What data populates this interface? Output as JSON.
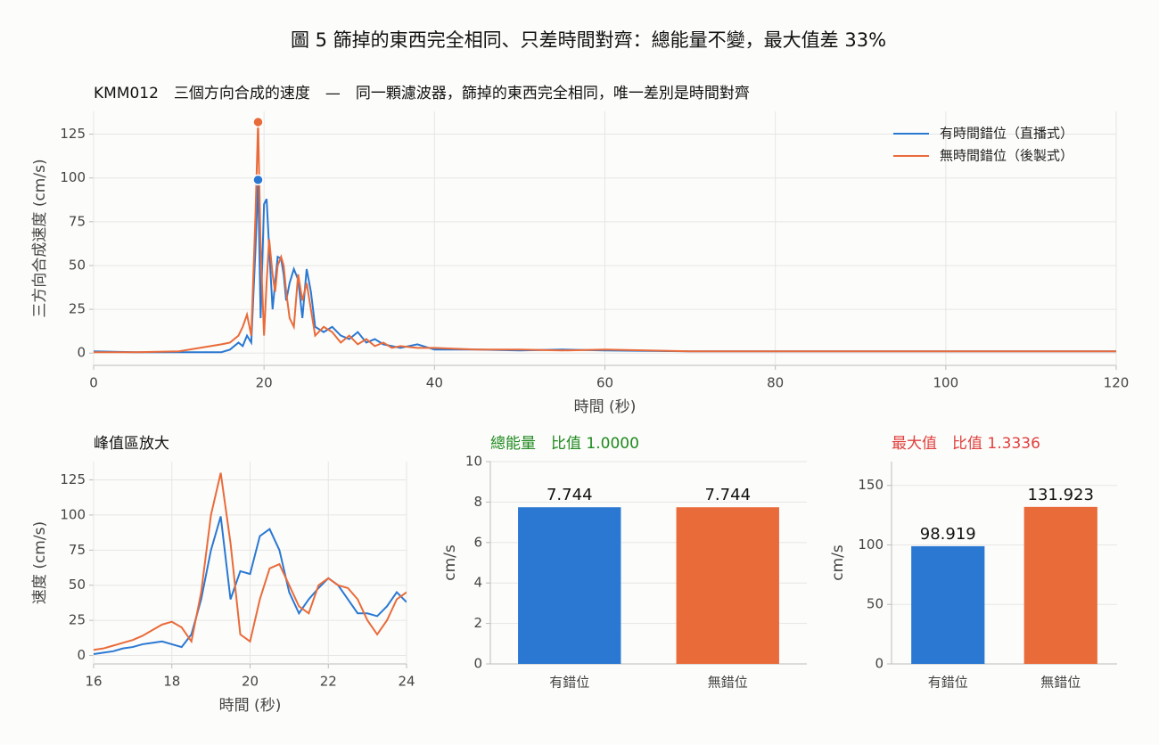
{
  "title": "圖 5  篩掉的東西完全相同、只差時間對齊：總能量不變，最大值差 33%",
  "chart_data": [
    {
      "type": "line",
      "title": "KMM012　三個方向合成的速度　—　同一顆濾波器，篩掉的東西完全相同，唯一差別是時間對齊",
      "xlabel": "時間 (秒)",
      "ylabel": "三方向合成速度 (cm/s)",
      "xlim": [
        0,
        120
      ],
      "xticks": [
        0,
        20,
        40,
        60,
        80,
        100,
        120
      ],
      "ylim": [
        -7,
        138
      ],
      "yticks": [
        0,
        25,
        50,
        75,
        100,
        125
      ],
      "grid": true,
      "legend": "upper right",
      "peak_marker": true,
      "x": [
        0,
        5,
        10,
        15,
        16,
        17,
        17.5,
        18,
        18.5,
        19,
        19.3,
        19.6,
        20,
        20.3,
        20.6,
        21,
        21.3,
        21.6,
        22,
        22.3,
        22.6,
        23,
        23.5,
        24,
        24.5,
        25,
        25.5,
        26,
        27,
        28,
        29,
        30,
        31,
        32,
        33,
        34,
        35,
        36,
        38,
        40,
        45,
        50,
        55,
        60,
        70,
        80,
        90,
        100,
        110,
        120
      ],
      "series": [
        {
          "name": "有時間錯位（直播式）",
          "color": "#2a78d2",
          "values": [
            1,
            0.5,
            0.5,
            0.5,
            2,
            6,
            4,
            10,
            6,
            60,
            98.919,
            20,
            85,
            88,
            60,
            25,
            40,
            55,
            54,
            45,
            30,
            40,
            48,
            42,
            20,
            48,
            35,
            15,
            12,
            15,
            10,
            8,
            12,
            6,
            8,
            5,
            4,
            3,
            5,
            2,
            2,
            1.5,
            2,
            1.5,
            1,
            1,
            1,
            1,
            1,
            1
          ]
        },
        {
          "name": "無時間錯位（後製式）",
          "color": "#e96b3a",
          "values": [
            0.5,
            0.5,
            1,
            5,
            6,
            10,
            15,
            22,
            10,
            80,
            131.923,
            60,
            10,
            40,
            65,
            45,
            35,
            50,
            55,
            50,
            35,
            20,
            15,
            45,
            30,
            40,
            25,
            10,
            15,
            12,
            6,
            10,
            5,
            8,
            4,
            6,
            3,
            4,
            3,
            3,
            2,
            2,
            1.5,
            2,
            1,
            1,
            1,
            1,
            1,
            1
          ]
        }
      ]
    },
    {
      "type": "line",
      "title": "峰值區放大",
      "xlabel": "時間 (秒)",
      "ylabel": "速度 (cm/s)",
      "xlim": [
        16,
        24
      ],
      "xticks": [
        16,
        18,
        20,
        22,
        24
      ],
      "ylim": [
        -6,
        138
      ],
      "yticks": [
        0,
        25,
        50,
        75,
        100,
        125
      ],
      "grid": true,
      "x": [
        16,
        16.25,
        16.5,
        16.75,
        17,
        17.25,
        17.5,
        17.75,
        18,
        18.25,
        18.5,
        18.75,
        19,
        19.25,
        19.5,
        19.75,
        20,
        20.25,
        20.5,
        20.75,
        21,
        21.25,
        21.5,
        21.75,
        22,
        22.25,
        22.5,
        22.75,
        23,
        23.25,
        23.5,
        23.75,
        24
      ],
      "series": [
        {
          "color": "#2a78d2",
          "values": [
            1,
            2,
            3,
            5,
            6,
            8,
            9,
            10,
            8,
            6,
            15,
            40,
            75,
            99,
            40,
            60,
            58,
            85,
            90,
            75,
            45,
            30,
            40,
            48,
            55,
            50,
            40,
            30,
            30,
            28,
            35,
            45,
            38
          ]
        },
        {
          "color": "#e96b3a",
          "values": [
            4,
            5,
            7,
            9,
            11,
            14,
            18,
            22,
            24,
            20,
            10,
            45,
            100,
            130,
            80,
            15,
            10,
            40,
            62,
            65,
            50,
            35,
            30,
            50,
            55,
            50,
            48,
            40,
            25,
            15,
            25,
            40,
            45
          ]
        }
      ]
    },
    {
      "type": "bar",
      "title": "總能量　比值 1.0000",
      "title_color": "#1f8a1f",
      "ylabel": "cm/s",
      "categories": [
        "有錯位",
        "無錯位"
      ],
      "values": [
        7.744,
        7.744
      ],
      "colors": [
        "#2a78d2",
        "#e96b3a"
      ],
      "ylim": [
        0,
        10
      ],
      "yticks": [
        0,
        2,
        4,
        6,
        8,
        10
      ],
      "grid": true
    },
    {
      "type": "bar",
      "title": "最大值　比值 1.3336",
      "title_color": "#e0413f",
      "ylabel": "cm/s",
      "categories": [
        "有錯位",
        "無錯位"
      ],
      "values": [
        98.919,
        131.923
      ],
      "colors": [
        "#2a78d2",
        "#e96b3a"
      ],
      "ylim": [
        0,
        170
      ],
      "yticks": [
        0,
        50,
        100,
        150
      ],
      "grid": true
    }
  ]
}
